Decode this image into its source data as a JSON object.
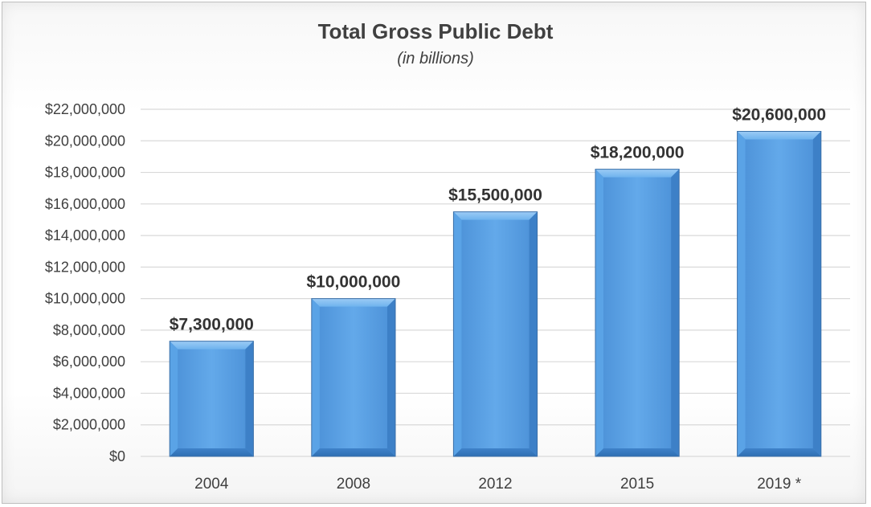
{
  "chart_data": {
    "type": "bar",
    "title": "Total Gross Public Debt",
    "subtitle": "(in billions)",
    "categories": [
      "2004",
      "2008",
      "2012",
      "2015",
      "2019 *"
    ],
    "values": [
      7300000,
      10000000,
      15500000,
      18200000,
      20600000
    ],
    "data_labels": [
      "$7,300,000",
      "$10,000,000",
      "$15,500,000",
      "$18,200,000",
      "$20,600,000"
    ],
    "y_ticks": [
      0,
      2000000,
      4000000,
      6000000,
      8000000,
      10000000,
      12000000,
      14000000,
      16000000,
      18000000,
      20000000,
      22000000
    ],
    "y_tick_labels": [
      "$0",
      "$2,000,000",
      "$4,000,000",
      "$6,000,000",
      "$8,000,000",
      "$10,000,000",
      "$12,000,000",
      "$14,000,000",
      "$16,000,000",
      "$18,000,000",
      "$20,000,000",
      "$22,000,000"
    ],
    "ylim": [
      0,
      22000000
    ],
    "grid": true,
    "legend": "none",
    "bar_color": "#5a9fe0"
  }
}
